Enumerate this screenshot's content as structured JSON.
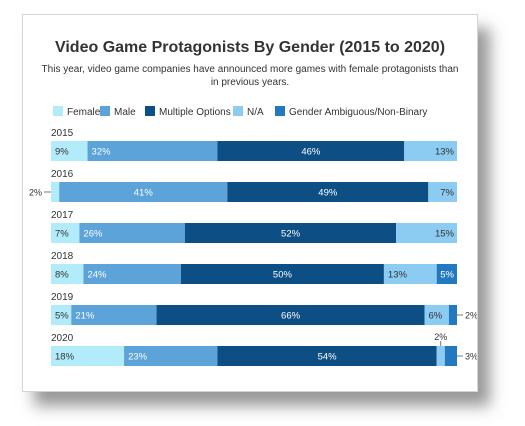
{
  "chart_data": {
    "type": "bar",
    "orientation": "horizontal",
    "stacked": true,
    "title": "Video Game Protagonists By Gender (2015 to 2020)",
    "subtitle_lines": [
      "This year, video game companies have announced more games with female protagonists than",
      "in previous years."
    ],
    "legend_position": "top-left",
    "xlim": [
      0,
      100
    ],
    "categories": [
      "2015",
      "2016",
      "2017",
      "2018",
      "2019",
      "2020"
    ],
    "series": [
      {
        "name": "Female",
        "color": "#b2ecfb",
        "text_color": "#333333",
        "values": [
          9,
          2,
          7,
          8,
          5,
          18
        ]
      },
      {
        "name": "Male",
        "color": "#5ba3d9",
        "text_color": "#ffffff",
        "values": [
          32,
          41,
          26,
          24,
          21,
          23
        ]
      },
      {
        "name": "Multiple Options",
        "color": "#0d4e85",
        "text_color": "#ffffff",
        "values": [
          46,
          49,
          52,
          50,
          66,
          54
        ]
      },
      {
        "name": "N/A",
        "color": "#8ccbf2",
        "text_color": "#333333",
        "values": [
          13,
          7,
          15,
          13,
          6,
          2
        ]
      },
      {
        "name": "Gender Ambiguous/Non-Binary",
        "color": "#2379bf",
        "text_color": "#ffffff",
        "values": [
          0,
          0,
          0,
          5,
          2,
          3
        ]
      }
    ],
    "data_labels": [
      [
        "9%",
        "32%",
        "46%",
        "13%",
        ""
      ],
      [
        "2%",
        "41%",
        "49%",
        "7%",
        ""
      ],
      [
        "7%",
        "26%",
        "52%",
        "15%",
        ""
      ],
      [
        "8%",
        "24%",
        "50%",
        "13%",
        "5%"
      ],
      [
        "5%",
        "21%",
        "66%",
        "6%",
        "2%"
      ],
      [
        "18%",
        "23%",
        "54%",
        "2%",
        "3%"
      ]
    ]
  }
}
